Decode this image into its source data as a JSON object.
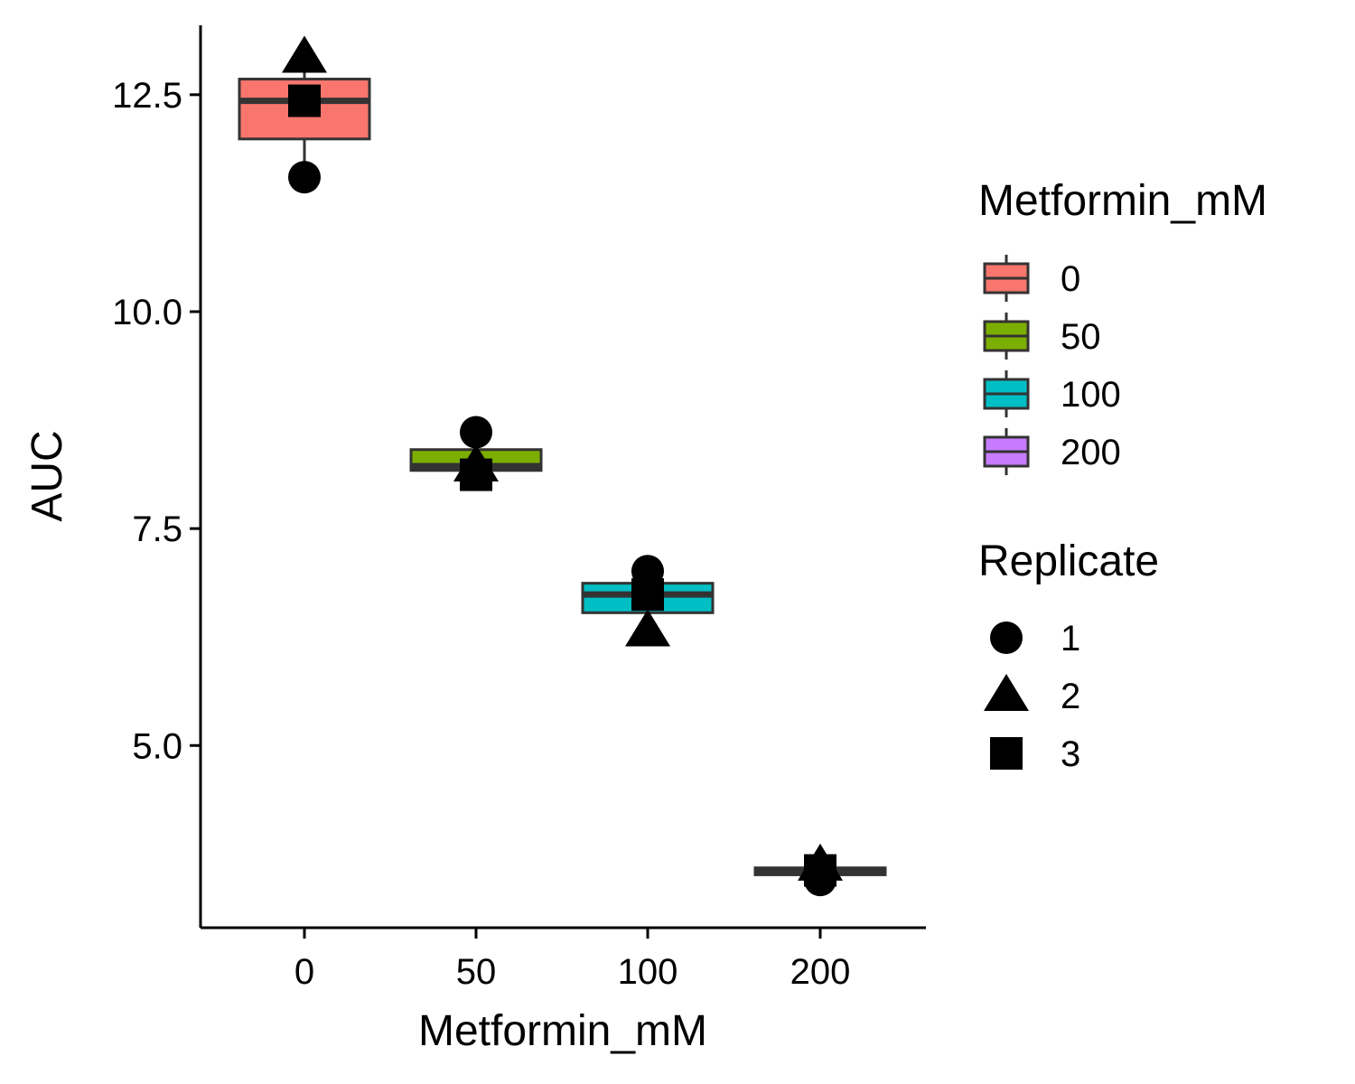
{
  "chart_data": {
    "type": "boxplot",
    "xlabel": "Metformin_mM",
    "ylabel": "AUC",
    "categories": [
      "0",
      "50",
      "100",
      "200"
    ],
    "ylim": [
      2.9,
      13.3
    ],
    "yticks": [
      5.0,
      7.5,
      10.0,
      12.5
    ],
    "ytick_labels": [
      "5.0",
      "7.5",
      "10.0",
      "12.5"
    ],
    "grid": false,
    "legend_placement": "right",
    "boxes": [
      {
        "category": "0",
        "fill": "#F8766D",
        "min": 11.55,
        "q1": 11.99,
        "median": 12.43,
        "q3": 12.68,
        "max": 12.93
      },
      {
        "category": "50",
        "fill": "#7CAE00",
        "min": 8.12,
        "q1": 8.17,
        "median": 8.22,
        "q3": 8.41,
        "max": 8.61
      },
      {
        "category": "100",
        "fill": "#00BFC4",
        "min": 6.32,
        "q1": 6.53,
        "median": 6.74,
        "q3": 6.87,
        "max": 7.01
      },
      {
        "category": "200",
        "fill": "#C77CFF",
        "min": 3.45,
        "q1": 3.51,
        "median": 3.56,
        "q3": 3.59,
        "max": 3.62
      }
    ],
    "points": [
      {
        "category": "0",
        "replicate": "1",
        "y": 11.55
      },
      {
        "category": "0",
        "replicate": "2",
        "y": 12.93
      },
      {
        "category": "0",
        "replicate": "3",
        "y": 12.43
      },
      {
        "category": "50",
        "replicate": "1",
        "y": 8.61
      },
      {
        "category": "50",
        "replicate": "2",
        "y": 8.22
      },
      {
        "category": "50",
        "replicate": "3",
        "y": 8.12
      },
      {
        "category": "100",
        "replicate": "1",
        "y": 7.01
      },
      {
        "category": "100",
        "replicate": "2",
        "y": 6.32
      },
      {
        "category": "100",
        "replicate": "3",
        "y": 6.74
      },
      {
        "category": "200",
        "replicate": "1",
        "y": 3.45
      },
      {
        "category": "200",
        "replicate": "2",
        "y": 3.62
      },
      {
        "category": "200",
        "replicate": "3",
        "y": 3.56
      }
    ],
    "legend": {
      "fill_title": "Metformin_mM",
      "fill_items": [
        {
          "label": "0",
          "color": "#F8766D"
        },
        {
          "label": "50",
          "color": "#7CAE00"
        },
        {
          "label": "100",
          "color": "#00BFC4"
        },
        {
          "label": "200",
          "color": "#C77CFF"
        }
      ],
      "shape_title": "Replicate",
      "shape_items": [
        {
          "label": "1",
          "shape": "circle"
        },
        {
          "label": "2",
          "shape": "triangle"
        },
        {
          "label": "3",
          "shape": "square"
        }
      ]
    }
  }
}
